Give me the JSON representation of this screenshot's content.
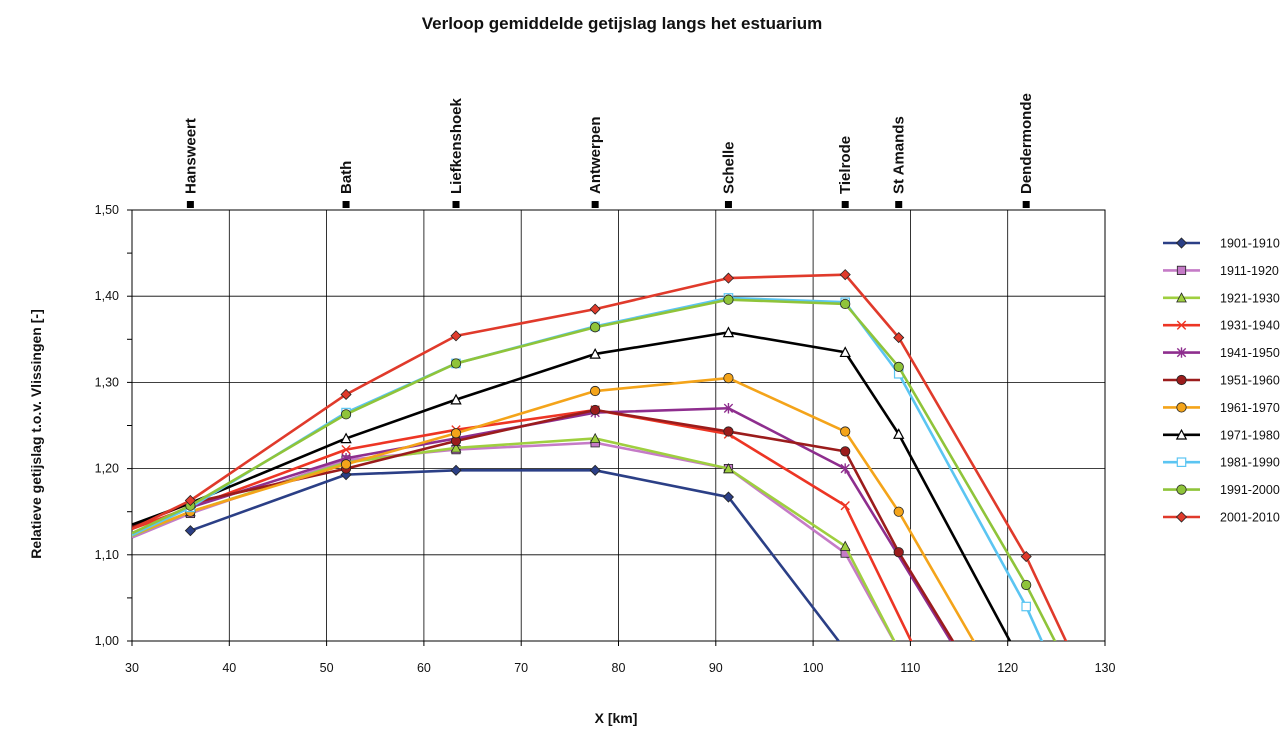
{
  "chart_data": {
    "type": "line",
    "title": "Verloop gemiddelde getijslag langs het estuarium",
    "xlabel": "X [km]",
    "ylabel": "Relatieve getijslag t.o.v. Vlissingen [-]",
    "xlim": [
      30,
      130
    ],
    "ylim": [
      1.0,
      1.5
    ],
    "x_ticks": [
      "30",
      "40",
      "50",
      "60",
      "70",
      "80",
      "90",
      "100",
      "110",
      "120",
      "130"
    ],
    "y_ticks": [
      "1,00",
      "1,10",
      "1,20",
      "1,30",
      "1,40",
      "1,50"
    ],
    "grid": true,
    "legend_position": "right",
    "locations": [
      {
        "name": "Hansweert",
        "x": 36.0
      },
      {
        "name": "Bath",
        "x": 52.0
      },
      {
        "name": "Liefkenshoek",
        "x": 63.3
      },
      {
        "name": "Antwerpen",
        "x": 77.6
      },
      {
        "name": "Schelle",
        "x": 91.3
      },
      {
        "name": "Tielrode",
        "x": 103.3
      },
      {
        "name": "St Amands",
        "x": 108.8
      },
      {
        "name": "Dendermonde",
        "x": 121.9
      }
    ],
    "series": [
      {
        "name": "1901-1910",
        "color": "#2b3f86",
        "marker": "diamond-filled",
        "x": [
          36.0,
          52.0,
          63.3,
          77.6,
          91.3,
          103.3
        ],
        "y": [
          1.128,
          1.193,
          1.198,
          1.198,
          1.167,
          0.99
        ]
      },
      {
        "name": "1911-1920",
        "color": "#c57bc7",
        "marker": "square-filled",
        "x": [
          30,
          36.0,
          52.0,
          63.3,
          77.6,
          91.3,
          103.3,
          108.8
        ],
        "y": [
          1.12,
          1.148,
          1.21,
          1.222,
          1.23,
          1.2,
          1.102,
          0.99
        ]
      },
      {
        "name": "1921-1930",
        "color": "#9fcf3f",
        "marker": "triangle-filled",
        "x": [
          30,
          36.0,
          52.0,
          63.3,
          77.6,
          91.3,
          103.3,
          108.8
        ],
        "y": [
          1.122,
          1.15,
          1.207,
          1.224,
          1.235,
          1.2,
          1.11,
          0.99
        ]
      },
      {
        "name": "1931-1940",
        "color": "#ed3524",
        "marker": "cross",
        "x": [
          30,
          36.0,
          52.0,
          63.3,
          77.6,
          91.3,
          103.3,
          110.5
        ],
        "y": [
          1.13,
          1.155,
          1.222,
          1.245,
          1.268,
          1.24,
          1.157,
          0.99
        ]
      },
      {
        "name": "1941-1950",
        "color": "#8e2e8e",
        "marker": "star",
        "x": [
          30,
          36.0,
          52.0,
          63.3,
          77.6,
          91.3,
          103.3,
          114.7
        ],
        "y": [
          1.125,
          1.155,
          1.212,
          1.235,
          1.265,
          1.27,
          1.2,
          0.99
        ]
      },
      {
        "name": "1951-1960",
        "color": "#9b1c1c",
        "marker": "circle-filled",
        "x": [
          30,
          36.0,
          52.0,
          63.3,
          77.6,
          91.3,
          103.3,
          108.8,
          114.9
        ],
        "y": [
          1.133,
          1.16,
          1.2,
          1.232,
          1.268,
          1.243,
          1.22,
          1.103,
          0.99
        ]
      },
      {
        "name": "1961-1970",
        "color": "#f4a41a",
        "marker": "circle-filled",
        "x": [
          30,
          36.0,
          52.0,
          63.3,
          77.6,
          91.3,
          103.3,
          108.8,
          117.0
        ],
        "y": [
          1.123,
          1.15,
          1.205,
          1.241,
          1.29,
          1.305,
          1.243,
          1.15,
          0.99
        ]
      },
      {
        "name": "1971-1980",
        "color": "#000000",
        "marker": "triangle-open",
        "x": [
          30,
          36.0,
          52.0,
          63.3,
          77.6,
          91.3,
          103.3,
          108.8,
          120.7
        ],
        "y": [
          1.135,
          1.16,
          1.235,
          1.28,
          1.333,
          1.358,
          1.335,
          1.24,
          0.99
        ]
      },
      {
        "name": "1981-1990",
        "color": "#5bc5f2",
        "marker": "square-open",
        "x": [
          30,
          36.0,
          52.0,
          63.3,
          77.6,
          91.3,
          103.3,
          108.8,
          121.9,
          123.9
        ],
        "y": [
          1.123,
          1.155,
          1.265,
          1.322,
          1.365,
          1.398,
          1.393,
          1.31,
          1.04,
          0.99
        ]
      },
      {
        "name": "1991-2000",
        "color": "#8fc43a",
        "marker": "circle-filled",
        "x": [
          30,
          36.0,
          52.0,
          63.3,
          77.6,
          91.3,
          103.3,
          108.8,
          121.9,
          125.3
        ],
        "y": [
          1.125,
          1.157,
          1.263,
          1.322,
          1.364,
          1.396,
          1.391,
          1.318,
          1.065,
          0.99
        ]
      },
      {
        "name": "2001-2010",
        "color": "#e03a2b",
        "marker": "diamond-filled",
        "x": [
          30,
          36.0,
          52.0,
          63.3,
          77.6,
          91.3,
          103.3,
          108.8,
          121.9,
          126.4
        ],
        "y": [
          1.13,
          1.163,
          1.286,
          1.354,
          1.385,
          1.421,
          1.425,
          1.352,
          1.098,
          0.99
        ]
      }
    ]
  }
}
